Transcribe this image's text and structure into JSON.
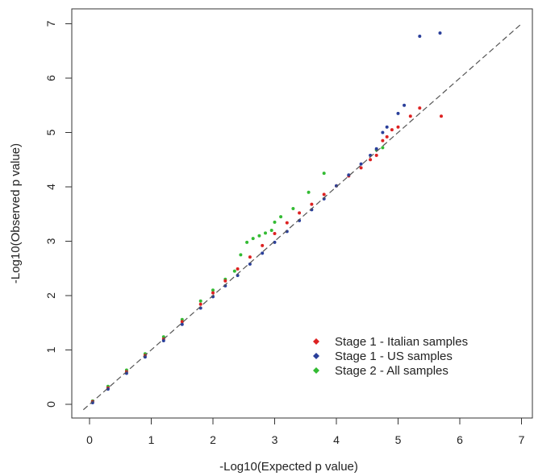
{
  "chart_data": {
    "type": "scatter",
    "title": "",
    "xlabel": "-Log10(Expected p value)",
    "ylabel": "-Log10(Observed p value)",
    "xlim": [
      -0.15,
      7.25
    ],
    "ylim": [
      -0.15,
      7.2
    ],
    "x_ticks": [
      "0",
      "1",
      "2",
      "3",
      "4",
      "5",
      "6",
      "7"
    ],
    "y_ticks": [
      "0",
      "1",
      "2",
      "3",
      "4",
      "5",
      "6",
      "7"
    ],
    "grid": false,
    "legend_position": "bottom-right",
    "reference_line": {
      "style": "dashed",
      "color": "#555555",
      "from": [
        -0.1,
        -0.1
      ],
      "to": [
        7.0,
        7.0
      ]
    },
    "series": [
      {
        "name": "Stage 1 - Italian samples",
        "color": "#dd2222",
        "points": [
          [
            0.05,
            0.05
          ],
          [
            0.3,
            0.3
          ],
          [
            0.6,
            0.6
          ],
          [
            0.9,
            0.9
          ],
          [
            1.2,
            1.2
          ],
          [
            1.5,
            1.52
          ],
          [
            1.8,
            1.84
          ],
          [
            2.0,
            2.05
          ],
          [
            2.2,
            2.27
          ],
          [
            2.4,
            2.49
          ],
          [
            2.6,
            2.71
          ],
          [
            2.8,
            2.92
          ],
          [
            3.0,
            3.14
          ],
          [
            3.2,
            3.34
          ],
          [
            3.4,
            3.52
          ],
          [
            3.6,
            3.68
          ],
          [
            3.8,
            3.86
          ],
          [
            4.0,
            4.02
          ],
          [
            4.2,
            4.2
          ],
          [
            4.4,
            4.35
          ],
          [
            4.55,
            4.5
          ],
          [
            4.65,
            4.58
          ],
          [
            4.75,
            4.85
          ],
          [
            4.82,
            4.92
          ],
          [
            4.9,
            5.05
          ],
          [
            5.0,
            5.1
          ],
          [
            5.2,
            5.3
          ],
          [
            5.35,
            5.45
          ],
          [
            5.7,
            5.3
          ]
        ]
      },
      {
        "name": "Stage 1 - US samples",
        "color": "#2a3f9a",
        "points": [
          [
            0.05,
            0.03
          ],
          [
            0.3,
            0.28
          ],
          [
            0.6,
            0.57
          ],
          [
            0.9,
            0.87
          ],
          [
            1.2,
            1.17
          ],
          [
            1.5,
            1.47
          ],
          [
            1.8,
            1.77
          ],
          [
            2.0,
            1.98
          ],
          [
            2.2,
            2.18
          ],
          [
            2.4,
            2.37
          ],
          [
            2.6,
            2.58
          ],
          [
            2.8,
            2.78
          ],
          [
            3.0,
            2.98
          ],
          [
            3.2,
            3.18
          ],
          [
            3.4,
            3.38
          ],
          [
            3.6,
            3.58
          ],
          [
            3.8,
            3.78
          ],
          [
            4.0,
            4.02
          ],
          [
            4.2,
            4.22
          ],
          [
            4.4,
            4.42
          ],
          [
            4.55,
            4.58
          ],
          [
            4.65,
            4.7
          ],
          [
            4.75,
            5.0
          ],
          [
            4.82,
            5.1
          ],
          [
            5.0,
            5.35
          ],
          [
            5.1,
            5.5
          ],
          [
            5.35,
            6.77
          ],
          [
            5.68,
            6.83
          ]
        ]
      },
      {
        "name": "Stage 2 - All samples",
        "color": "#33bb33",
        "points": [
          [
            0.05,
            0.06
          ],
          [
            0.3,
            0.33
          ],
          [
            0.6,
            0.63
          ],
          [
            0.9,
            0.93
          ],
          [
            1.2,
            1.24
          ],
          [
            1.5,
            1.56
          ],
          [
            1.8,
            1.9
          ],
          [
            2.0,
            2.1
          ],
          [
            2.2,
            2.3
          ],
          [
            2.35,
            2.45
          ],
          [
            2.45,
            2.75
          ],
          [
            2.55,
            2.98
          ],
          [
            2.65,
            3.05
          ],
          [
            2.75,
            3.1
          ],
          [
            2.85,
            3.15
          ],
          [
            2.95,
            3.2
          ],
          [
            3.0,
            3.35
          ],
          [
            3.1,
            3.45
          ],
          [
            3.3,
            3.6
          ],
          [
            3.55,
            3.9
          ],
          [
            3.8,
            4.25
          ],
          [
            4.65,
            4.68
          ],
          [
            4.75,
            4.72
          ]
        ]
      }
    ]
  }
}
